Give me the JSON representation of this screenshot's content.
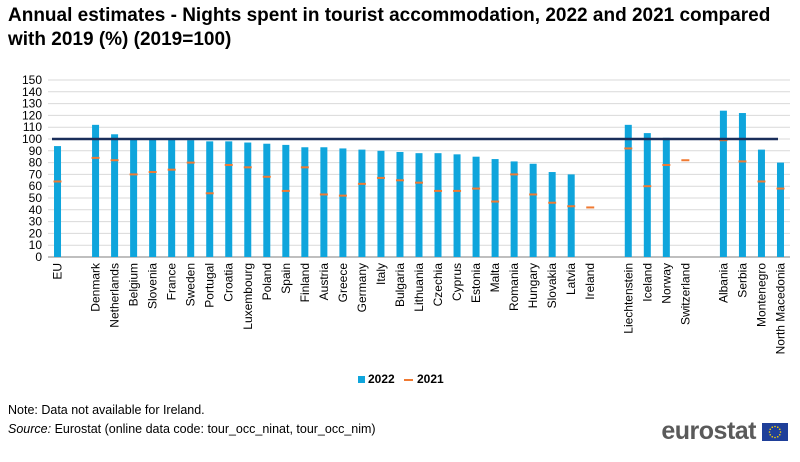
{
  "title": "Annual estimates - Nights spent in tourist accommodation, 2022 and 2021 compared with 2019 (%) (2019=100)",
  "notes": {
    "note": "Note: Data not available for Ireland.",
    "source_label": "Source:",
    "source_text": " Eurostat (online data code: tour_occ_ninat, tour_occ_nim)"
  },
  "logo": {
    "text": "eurostat",
    "flag_icon": "eu-flag-icon"
  },
  "colors": {
    "bar_2022": "#0fa5dc",
    "marker_2021": "#f07a32",
    "reference_line": "#1a2e5a",
    "grid": "#d9d9d9"
  },
  "chart_data": {
    "type": "bar",
    "title": "Annual estimates - Nights spent in tourist accommodation, 2022 and 2021 compared with 2019 (%) (2019=100)",
    "xlabel": "",
    "ylabel": "",
    "ylim": [
      0,
      150
    ],
    "yticks": [
      0,
      10,
      20,
      30,
      40,
      50,
      60,
      70,
      80,
      90,
      100,
      110,
      120,
      130,
      140,
      150
    ],
    "grid": true,
    "legend_position": "bottom",
    "reference_line": 100,
    "categories": [
      "EU",
      "",
      "Denmark",
      "Netherlands",
      "Belgium",
      "Slovenia",
      "France",
      "Sweden",
      "Portugal",
      "Croatia",
      "Luxembourg",
      "Poland",
      "Spain",
      "Finland",
      "Austria",
      "Greece",
      "Germany",
      "Italy",
      "Bulgaria",
      "Lithuania",
      "Czechia",
      "Cyprus",
      "Estonia",
      "Malta",
      "Romania",
      "Hungary",
      "Slovakia",
      "Latvia",
      "Ireland",
      "",
      "Liechtenstein",
      "Iceland",
      "Norway",
      "Switzerland",
      "",
      "Albania",
      "Serbia",
      "Montenegro",
      "North Macedonia"
    ],
    "series": [
      {
        "name": "2022",
        "type": "bar",
        "values": [
          94,
          null,
          112,
          104,
          100,
          100,
          100,
          99,
          98,
          98,
          97,
          96,
          95,
          93,
          93,
          92,
          91,
          90,
          89,
          88,
          88,
          87,
          85,
          83,
          81,
          79,
          72,
          70,
          null,
          null,
          112,
          105,
          101,
          null,
          null,
          124,
          122,
          91,
          80
        ]
      },
      {
        "name": "2021",
        "type": "marker",
        "values": [
          64,
          null,
          84,
          82,
          70,
          72,
          74,
          80,
          54,
          78,
          76,
          68,
          56,
          76,
          53,
          52,
          62,
          67,
          65,
          63,
          56,
          56,
          58,
          47,
          70,
          53,
          46,
          43,
          42,
          null,
          92,
          60,
          78,
          82,
          null,
          99,
          81,
          64,
          58
        ]
      }
    ]
  }
}
